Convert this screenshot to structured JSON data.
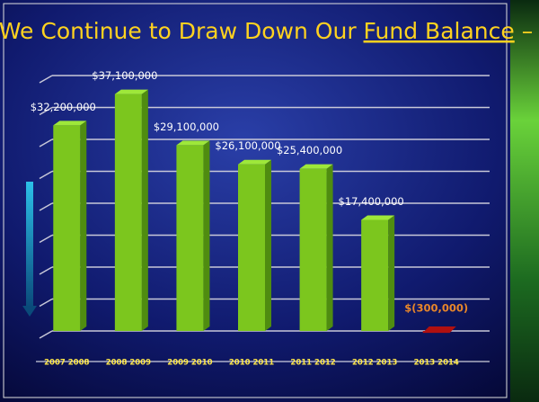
{
  "chart_data": {
    "type": "bar",
    "title": [
      "We Continue to Draw Down Our ",
      "Fund Balance",
      " –"
    ],
    "categories": [
      "2007 2008",
      "2008 2009",
      "2009 2010",
      "2010 2011",
      "2011 2012",
      "2012 2013",
      "2013 2014"
    ],
    "values": [
      32200000,
      37100000,
      29100000,
      26100000,
      25400000,
      17400000,
      -300000
    ],
    "value_labels": [
      "$32,200,000",
      "$37,100,000",
      "$29,100,000",
      "$26,100,000",
      "$25,400,000",
      "$17,400,000",
      "$(300,000)"
    ],
    "color": "#7cc61e",
    "negative_color": "#b01010",
    "negative_label_color": "#e8862a",
    "ylim": [
      -5000000,
      40000000
    ],
    "yticks": [
      0,
      5000000,
      10000000,
      15000000,
      20000000,
      25000000,
      30000000,
      35000000,
      40000000
    ],
    "grid": true
  }
}
